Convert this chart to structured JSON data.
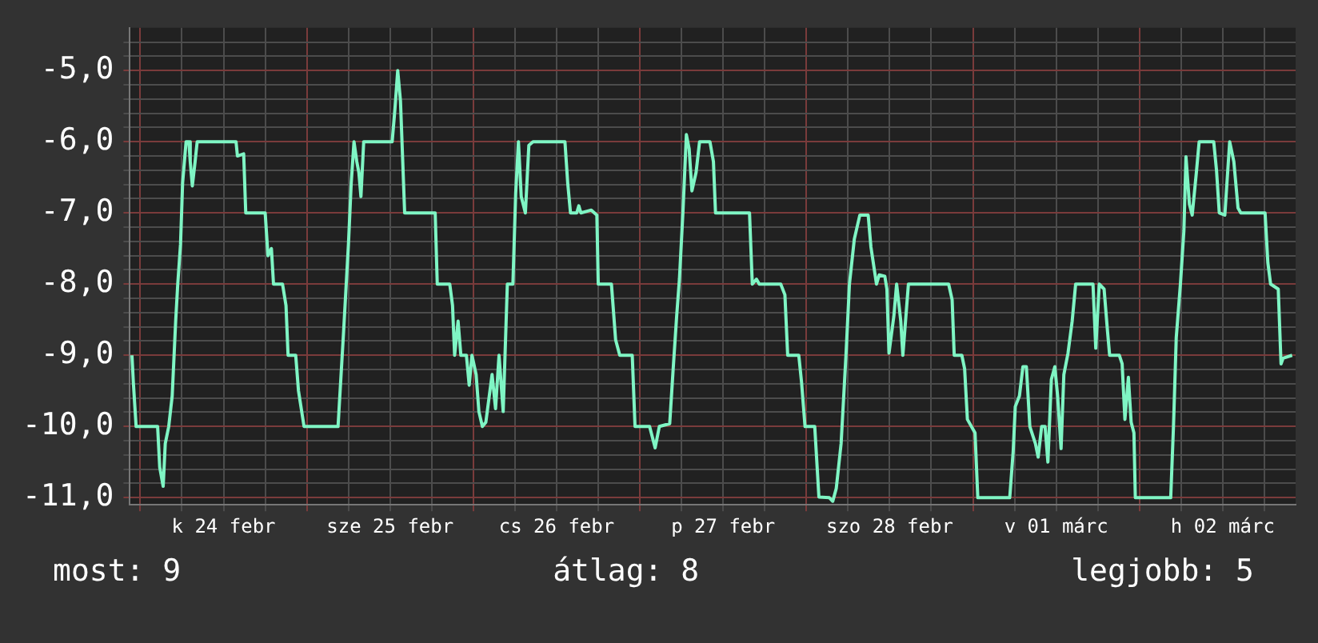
{
  "chart_data": {
    "type": "line",
    "color": "#7ff5c4",
    "legend": false,
    "grid": true,
    "marker": "none",
    "line_style": "solid",
    "x": [
      "--02-23T22:48",
      "--02-23T23:00",
      "--02-23T23:24",
      "--02-24T02:30",
      "--02-24T02:48",
      "--02-24T03:18",
      "--02-24T03:36",
      "--02-24T04:06",
      "--02-24T04:36",
      "--02-24T05:06",
      "--02-24T05:24",
      "--02-24T05:48",
      "--02-24T06:06",
      "--02-24T06:36",
      "--02-24T07:00",
      "--02-24T07:12",
      "--02-24T07:30",
      "--02-24T07:54",
      "--02-24T08:12",
      "--02-24T13:48",
      "--02-24T14:00",
      "--02-24T14:54",
      "--02-24T15:12",
      "--02-24T18:00",
      "--02-24T18:24",
      "--02-24T18:54",
      "--02-24T19:12",
      "--02-24T20:30",
      "--02-24T21:00",
      "--02-24T21:18",
      "--02-24T22:24",
      "--02-24T22:48",
      "--02-24T23:36",
      "--02-25T04:30",
      "--02-25T05:18",
      "--02-25T06:00",
      "--02-25T06:24",
      "--02-25T06:48",
      "--02-25T07:12",
      "--02-25T07:30",
      "--02-25T07:48",
      "--02-25T08:12",
      "--02-25T12:18",
      "--02-25T12:42",
      "--02-25T13:06",
      "--02-25T13:30",
      "--02-25T14:06",
      "--02-25T18:30",
      "--02-25T18:48",
      "--02-25T20:36",
      "--02-25T21:00",
      "--02-25T21:18",
      "--02-25T21:48",
      "--02-25T22:12",
      "--02-25T23:00",
      "--02-25T23:24",
      "--02-25T23:48",
      "--02-26T00:24",
      "--02-26T00:48",
      "--02-26T01:18",
      "--02-26T01:48",
      "--02-26T02:42",
      "--02-26T03:12",
      "--02-26T03:42",
      "--02-26T04:18",
      "--02-26T04:54",
      "--02-26T05:42",
      "--02-26T06:06",
      "--02-26T06:30",
      "--02-26T06:54",
      "--02-26T07:30",
      "--02-26T08:00",
      "--02-26T08:36",
      "--02-26T13:12",
      "--02-26T13:36",
      "--02-26T14:00",
      "--02-26T14:54",
      "--02-26T15:12",
      "--02-26T15:30",
      "--02-26T17:00",
      "--02-26T17:48",
      "--02-26T18:00",
      "--02-26T19:54",
      "--02-26T20:30",
      "--02-26T21:06",
      "--02-26T22:54",
      "--02-26T23:18",
      "--02-27T01:24",
      "--02-27T02:12",
      "--02-27T02:48",
      "--02-27T04:18",
      "--02-27T04:48",
      "--02-27T05:18",
      "--02-27T05:42",
      "--02-27T06:12",
      "--02-27T06:42",
      "--02-27T07:06",
      "--02-27T07:30",
      "--02-27T08:06",
      "--02-27T08:36",
      "--02-27T10:06",
      "--02-27T10:36",
      "--02-27T10:54",
      "--02-27T15:48",
      "--02-27T16:12",
      "--02-27T16:48",
      "--02-27T17:12",
      "--02-27T20:18",
      "--02-27T20:54",
      "--02-27T21:18",
      "--02-27T22:54",
      "--02-27T23:18",
      "--02-27T23:48",
      "--02-28T01:12",
      "--02-28T01:48",
      "--02-28T03:18",
      "--02-28T03:48",
      "--02-28T04:18",
      "--02-28T05:00",
      "--02-28T05:42",
      "--02-28T06:12",
      "--02-28T06:54",
      "--02-28T07:42",
      "--02-28T08:54",
      "--02-28T09:18",
      "--02-28T10:06",
      "--02-28T10:30",
      "--02-28T11:18",
      "--02-28T11:36",
      "--02-28T11:54",
      "--02-28T12:36",
      "--02-28T13:00",
      "--02-28T13:36",
      "--02-28T13:54",
      "--02-28T14:42",
      "--02-28T20:30",
      "--02-28T21:00",
      "--02-28T21:18",
      "--02-28T22:24",
      "--02-28T22:48",
      "--02-28T23:12",
      "--03-01T00:18",
      "--03-01T00:42",
      "--03-01T05:18",
      "--03-01T05:48",
      "--03-01T06:06",
      "--03-01T06:42",
      "--03-01T07:12",
      "--03-01T07:42",
      "--03-01T08:12",
      "--03-01T09:00",
      "--03-01T09:24",
      "--03-01T09:54",
      "--03-01T10:24",
      "--03-01T10:48",
      "--03-01T11:18",
      "--03-01T11:48",
      "--03-01T12:12",
      "--03-01T12:42",
      "--03-01T13:06",
      "--03-01T13:42",
      "--03-01T14:18",
      "--03-01T14:48",
      "--03-01T17:18",
      "--03-01T17:42",
      "--03-01T18:12",
      "--03-01T18:54",
      "--03-01T19:24",
      "--03-01T19:42",
      "--03-01T21:06",
      "--03-01T21:30",
      "--03-01T21:54",
      "--03-01T22:24",
      "--03-01T22:48",
      "--03-01T23:12",
      "--03-01T23:24",
      "--03-02T04:30",
      "--03-02T04:54",
      "--03-02T05:18",
      "--03-02T05:54",
      "--03-02T06:24",
      "--03-02T06:42",
      "--03-02T07:12",
      "--03-02T07:36",
      "--03-02T08:12",
      "--03-02T08:36",
      "--03-02T10:42",
      "--03-02T11:06",
      "--03-02T11:30",
      "--03-02T12:18",
      "--03-02T13:00",
      "--03-02T13:36",
      "--03-02T14:12",
      "--03-02T14:36",
      "--03-02T18:06",
      "--03-02T18:30",
      "--03-02T18:54",
      "--03-02T20:00",
      "--03-02T20:24",
      "--03-02T20:42",
      "--03-02T22:00"
    ],
    "values": [
      -9.0,
      -9.38,
      -10.0,
      -10.0,
      -10.57,
      -10.84,
      -10.24,
      -10.0,
      -9.57,
      -8.52,
      -8.0,
      -7.44,
      -6.58,
      -6.0,
      -6.0,
      -6.28,
      -6.62,
      -6.28,
      -6.0,
      -6.0,
      -6.2,
      -6.17,
      -7.0,
      -7.0,
      -7.6,
      -7.5,
      -8.0,
      -8.0,
      -8.3,
      -9.0,
      -9.0,
      -9.5,
      -10.0,
      -10.0,
      -8.67,
      -7.44,
      -6.58,
      -6.0,
      -6.28,
      -6.43,
      -6.77,
      -6.0,
      -6.0,
      -5.54,
      -5.0,
      -5.43,
      -7.0,
      -7.0,
      -8.0,
      -8.0,
      -8.3,
      -9.0,
      -8.52,
      -9.0,
      -9.0,
      -9.42,
      -9.0,
      -9.27,
      -9.79,
      -10.0,
      -9.94,
      -9.27,
      -9.75,
      -9.0,
      -9.79,
      -8.0,
      -8.0,
      -6.73,
      -6.0,
      -6.77,
      -7.0,
      -6.05,
      -6.0,
      -6.0,
      -6.58,
      -7.0,
      -7.0,
      -6.9,
      -7.0,
      -6.96,
      -7.03,
      -8.0,
      -8.0,
      -8.78,
      -9.0,
      -9.0,
      -10.0,
      -10.0,
      -10.3,
      -10.0,
      -9.96,
      -9.19,
      -8.45,
      -7.93,
      -7.0,
      -5.9,
      -6.1,
      -6.69,
      -6.43,
      -6.0,
      -6.0,
      -6.28,
      -7.0,
      -7.0,
      -8.0,
      -7.93,
      -8.0,
      -8.0,
      -8.15,
      -9.0,
      -9.0,
      -9.38,
      -10.0,
      -10.0,
      -10.99,
      -11.0,
      -11.05,
      -10.87,
      -10.24,
      -9.0,
      -8.0,
      -7.37,
      -7.03,
      -7.03,
      -7.48,
      -8.0,
      -7.87,
      -7.89,
      -8.07,
      -8.97,
      -8.45,
      -8.0,
      -8.52,
      -9.0,
      -8.0,
      -8.0,
      -8.22,
      -9.0,
      -9.0,
      -9.19,
      -9.9,
      -10.09,
      -11.0,
      -11.0,
      -10.35,
      -9.72,
      -9.57,
      -9.16,
      -9.16,
      -10.0,
      -10.24,
      -10.43,
      -10.0,
      -10.0,
      -10.5,
      -9.34,
      -9.16,
      -9.57,
      -10.31,
      -9.27,
      -8.97,
      -8.52,
      -8.0,
      -8.0,
      -8.9,
      -8.0,
      -8.07,
      -8.67,
      -9.0,
      -9.0,
      -9.12,
      -9.9,
      -9.31,
      -9.94,
      -10.09,
      -11.0,
      -11.0,
      -10.0,
      -8.75,
      -8.0,
      -7.25,
      -6.21,
      -6.88,
      -7.03,
      -6.43,
      -6.0,
      -6.0,
      -6.4,
      -7.0,
      -7.03,
      -6.0,
      -6.28,
      -6.93,
      -7.0,
      -7.0,
      -7.7,
      -8.0,
      -8.07,
      -9.12,
      -9.04,
      -9.0
    ],
    "xlim": [
      "--02-23T22:30",
      "--03-02T22:30"
    ],
    "xticks": [
      {
        "value": "--02-24T00:00",
        "label": null
      },
      {
        "value": "--02-24T06:00",
        "label": null
      },
      {
        "value": "--02-24T12:00",
        "label": "k 24 febr"
      },
      {
        "value": "--02-24T18:00",
        "label": null
      },
      {
        "value": "--02-25T00:00",
        "label": null
      },
      {
        "value": "--02-25T06:00",
        "label": null
      },
      {
        "value": "--02-25T12:00",
        "label": "sze 25 febr"
      },
      {
        "value": "--02-25T18:00",
        "label": null
      },
      {
        "value": "--02-26T00:00",
        "label": null
      },
      {
        "value": "--02-26T06:00",
        "label": null
      },
      {
        "value": "--02-26T12:00",
        "label": "cs 26 febr"
      },
      {
        "value": "--02-26T18:00",
        "label": null
      },
      {
        "value": "--02-27T00:00",
        "label": null
      },
      {
        "value": "--02-27T06:00",
        "label": null
      },
      {
        "value": "--02-27T12:00",
        "label": "p 27 febr"
      },
      {
        "value": "--02-27T18:00",
        "label": null
      },
      {
        "value": "--02-28T00:00",
        "label": null
      },
      {
        "value": "--02-28T06:00",
        "label": null
      },
      {
        "value": "--02-28T12:00",
        "label": "szo 28 febr"
      },
      {
        "value": "--02-28T18:00",
        "label": null
      },
      {
        "value": "--03-01T00:00",
        "label": null
      },
      {
        "value": "--03-01T06:00",
        "label": null
      },
      {
        "value": "--03-01T12:00",
        "label": "v 01 márc"
      },
      {
        "value": "--03-01T18:00",
        "label": null
      },
      {
        "value": "--03-02T00:00",
        "label": null
      },
      {
        "value": "--03-02T06:00",
        "label": null
      },
      {
        "value": "--03-02T12:00",
        "label": "h 02 márc"
      },
      {
        "value": "--03-02T18:00",
        "label": null
      }
    ],
    "ylim": [
      -11.1,
      -4.4
    ],
    "yticks": [
      {
        "value": -11,
        "label": "-11,0"
      },
      {
        "value": -10.8,
        "label": null
      },
      {
        "value": -10.6,
        "label": null
      },
      {
        "value": -10.4,
        "label": null
      },
      {
        "value": -10.2,
        "label": null
      },
      {
        "value": -10,
        "label": "-10,0"
      },
      {
        "value": -9.8,
        "label": null
      },
      {
        "value": -9.6,
        "label": null
      },
      {
        "value": -9.4,
        "label": null
      },
      {
        "value": -9.2,
        "label": null
      },
      {
        "value": -9,
        "label": "-9,0"
      },
      {
        "value": -8.8,
        "label": null
      },
      {
        "value": -8.6,
        "label": null
      },
      {
        "value": -8.4,
        "label": null
      },
      {
        "value": -8.2,
        "label": null
      },
      {
        "value": -8,
        "label": "-8,0"
      },
      {
        "value": -7.8,
        "label": null
      },
      {
        "value": -7.6,
        "label": null
      },
      {
        "value": -7.4,
        "label": null
      },
      {
        "value": -7.2,
        "label": null
      },
      {
        "value": -7,
        "label": "-7,0"
      },
      {
        "value": -6.8,
        "label": null
      },
      {
        "value": -6.6,
        "label": null
      },
      {
        "value": -6.4,
        "label": null
      },
      {
        "value": -6.2,
        "label": null
      },
      {
        "value": -6,
        "label": "-6,0"
      },
      {
        "value": -5.8,
        "label": null
      },
      {
        "value": -5.6,
        "label": null
      },
      {
        "value": -5.4,
        "label": null
      },
      {
        "value": -5.2,
        "label": null
      },
      {
        "value": -5,
        "label": "-5,0"
      },
      {
        "value": -4.8,
        "label": null
      },
      {
        "value": -4.6,
        "label": null
      }
    ],
    "annotations": [
      "most: 9",
      "átlag: 8",
      "legjobb: 5"
    ]
  }
}
